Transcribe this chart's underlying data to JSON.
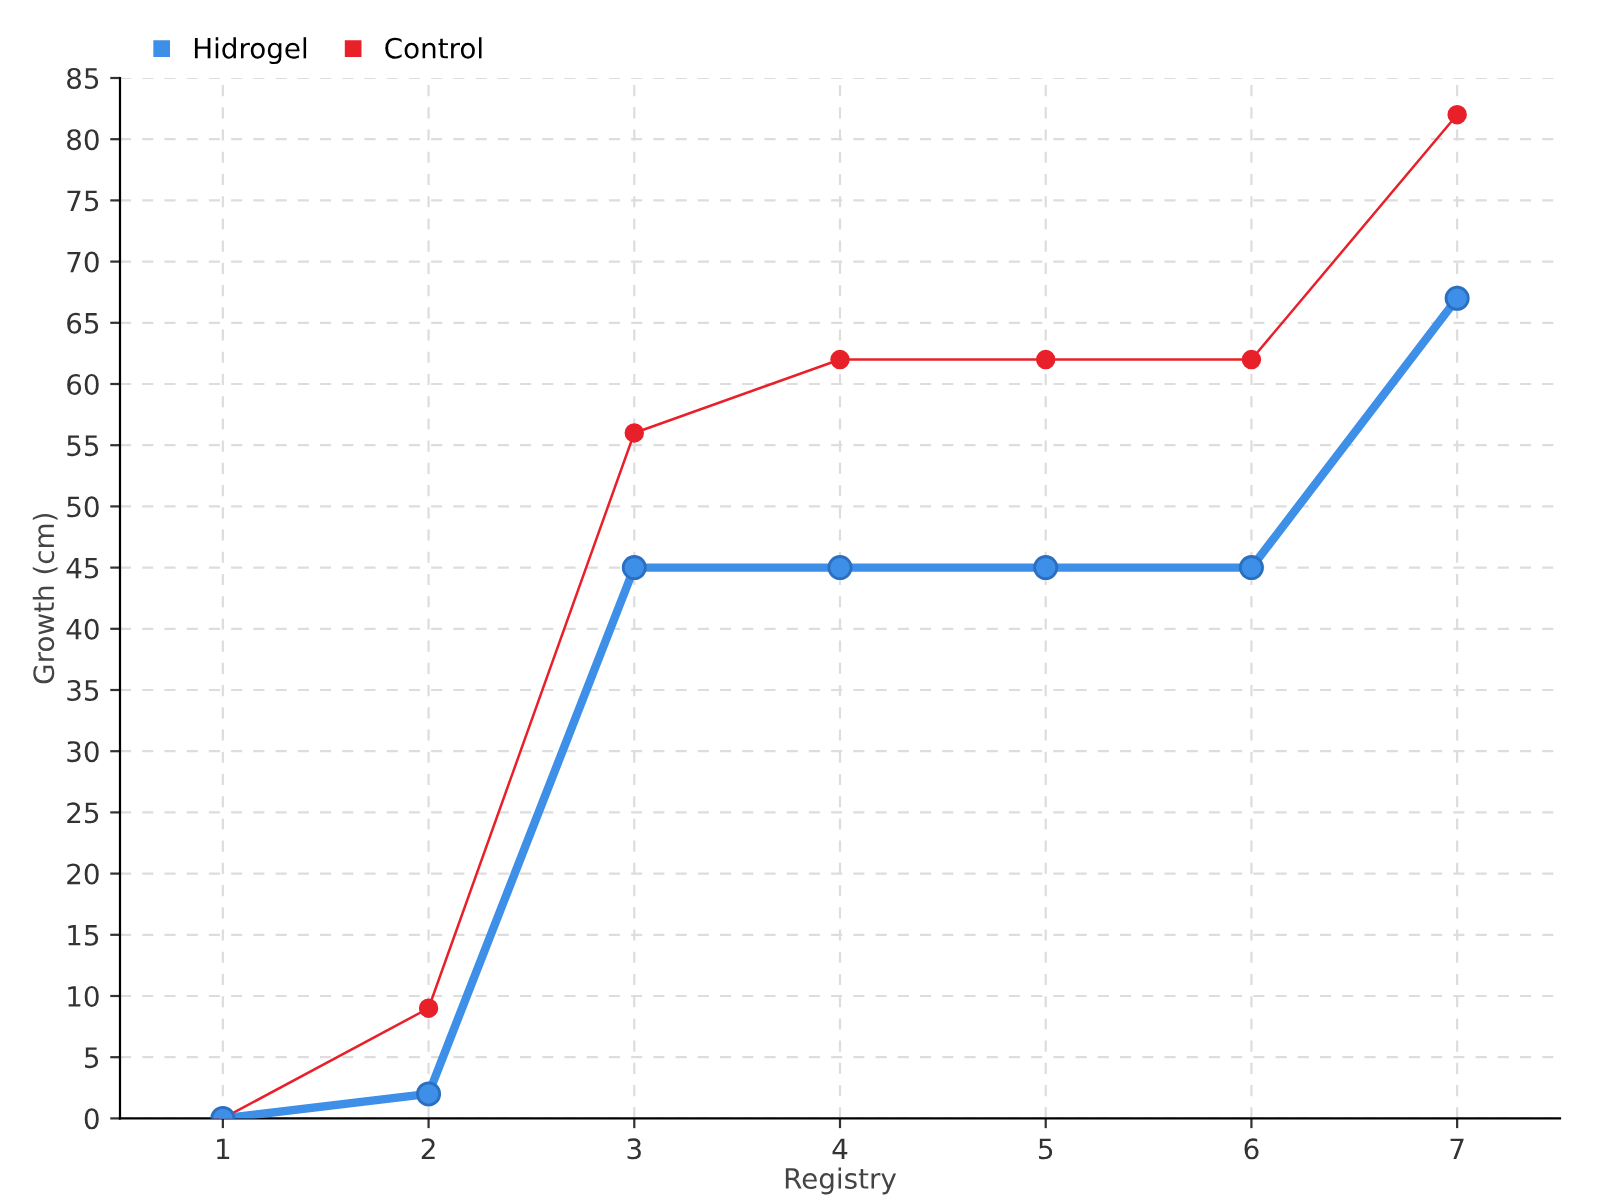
{
  "chart_data": {
    "type": "line",
    "xlabel": "Registry",
    "ylabel": "Growth (cm)",
    "x": [
      1,
      2,
      3,
      4,
      5,
      6,
      7
    ],
    "xlim": [
      0.5,
      7.5
    ],
    "xticks": [
      1,
      2,
      3,
      4,
      5,
      6,
      7
    ],
    "ylim": [
      0,
      85
    ],
    "yticks": [
      0,
      5,
      10,
      15,
      20,
      25,
      30,
      35,
      40,
      45,
      50,
      55,
      60,
      65,
      70,
      75,
      80,
      85
    ],
    "series": [
      {
        "name": "Hidrogel",
        "color": "#3d8fe8",
        "values": [
          0,
          2,
          45,
          45,
          45,
          45,
          67
        ]
      },
      {
        "name": "Control",
        "color": "#e8202a",
        "values": [
          0,
          9,
          56,
          62,
          62,
          62,
          82
        ]
      }
    ],
    "grid": true,
    "legend": "top left",
    "marker": "circle",
    "line_style": "solid"
  }
}
